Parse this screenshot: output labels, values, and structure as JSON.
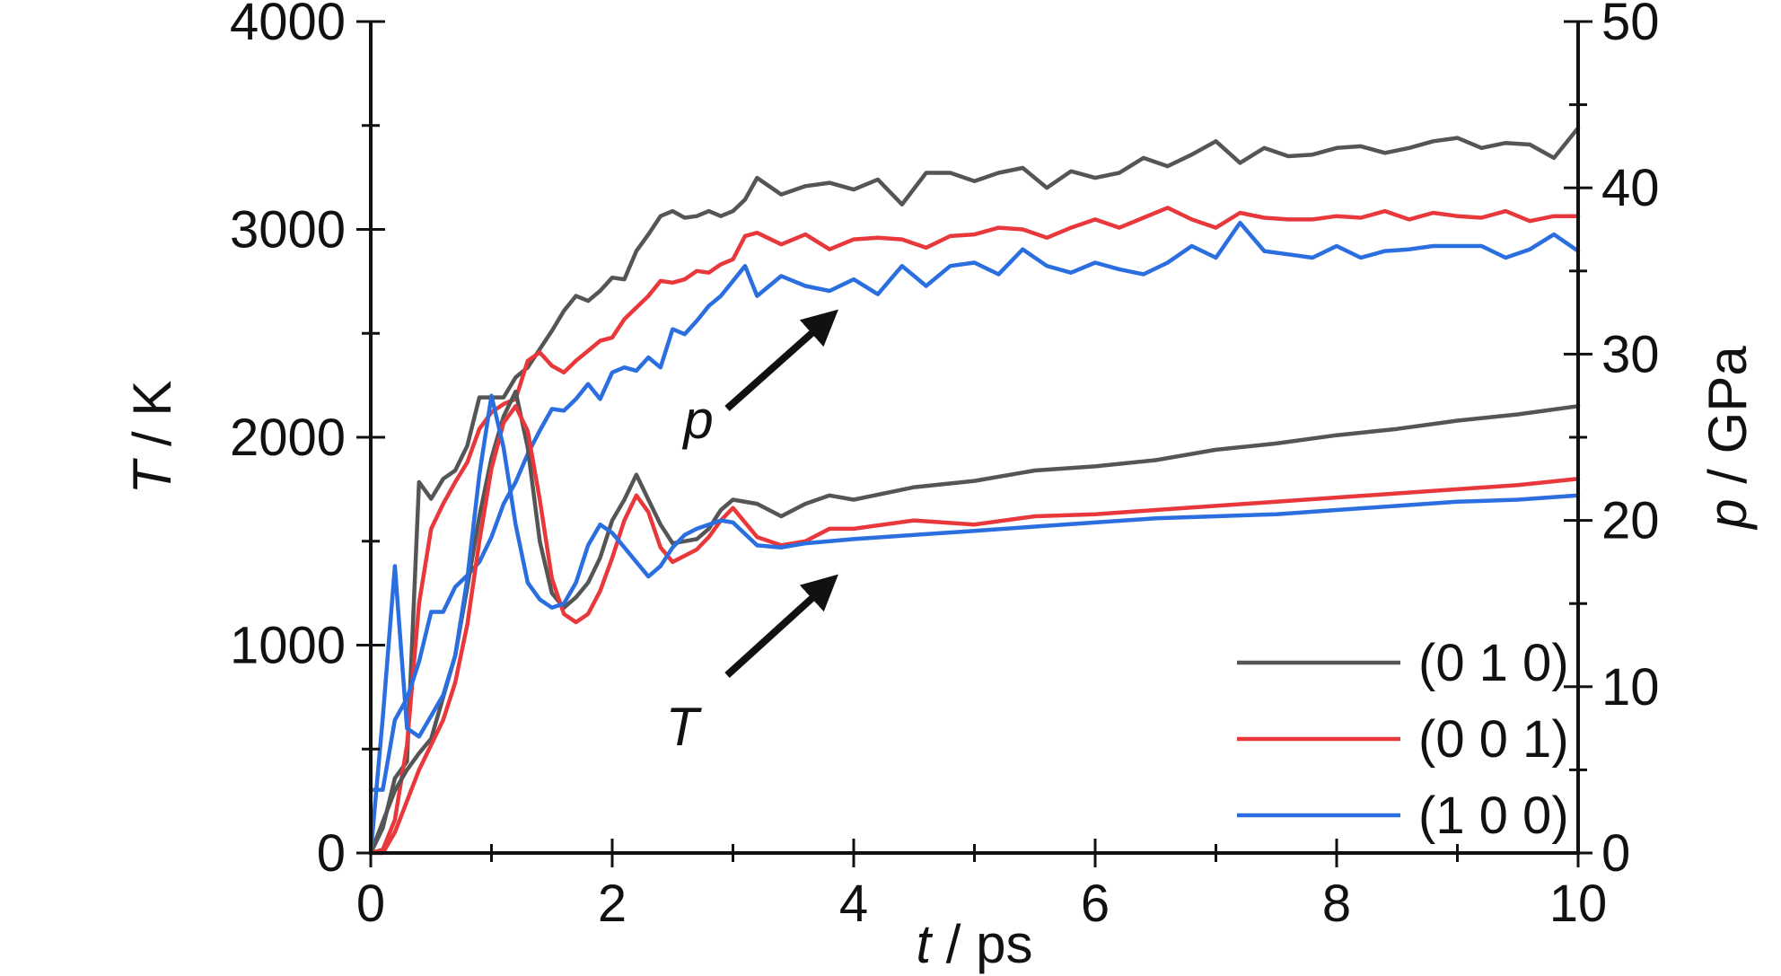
{
  "chart_data": {
    "type": "line",
    "title": "",
    "xlabel": {
      "var": "t",
      "unit": " / ps"
    },
    "ylabel_left": {
      "var": "T",
      "unit": " / K"
    },
    "ylabel_right": {
      "var": "p",
      "unit": " / GPa"
    },
    "xlim": [
      0,
      10
    ],
    "ylim_left": [
      0,
      4000
    ],
    "ylim_right": [
      0,
      50
    ],
    "xticks": [
      0,
      2,
      4,
      6,
      8,
      10
    ],
    "yticks_left": [
      0,
      1000,
      2000,
      3000,
      4000
    ],
    "yticks_right": [
      0,
      10,
      20,
      30,
      40,
      50
    ],
    "grid": false,
    "legend_position": "bottom-right",
    "annotations": [
      {
        "text": "p",
        "points_to": "pressure curves"
      },
      {
        "text": "T",
        "points_to": "temperature curves"
      }
    ],
    "series": [
      {
        "name": "(0 1 0)",
        "color": "#555555",
        "quantity": "p",
        "axis": "right",
        "x": [
          0,
          0.1,
          0.2,
          0.3,
          0.4,
          0.5,
          0.6,
          0.7,
          0.8,
          0.9,
          1.0,
          1.1,
          1.2,
          1.3,
          1.4,
          1.5,
          1.6,
          1.7,
          1.8,
          1.9,
          2.0,
          2.1,
          2.2,
          2.3,
          2.4,
          2.5,
          2.6,
          2.7,
          2.8,
          2.9,
          3.0,
          3.1,
          3.2,
          3.4,
          3.6,
          3.8,
          4.0,
          4.2,
          4.4,
          4.6,
          4.8,
          5.0,
          5.2,
          5.4,
          5.6,
          5.8,
          6.0,
          6.2,
          6.4,
          6.6,
          6.8,
          7.0,
          7.2,
          7.4,
          7.6,
          7.8,
          8.0,
          8.2,
          8.4,
          8.6,
          8.8,
          9.0,
          9.2,
          9.4,
          9.6,
          9.8,
          10.0
        ],
        "y": [
          0,
          1.5,
          4.5,
          5.5,
          22.3,
          21.3,
          22.5,
          23.0,
          24.5,
          27.4,
          27.4,
          27.4,
          28.6,
          29.2,
          30.3,
          31.4,
          32.6,
          33.5,
          33.2,
          33.8,
          34.6,
          34.5,
          36.2,
          37.2,
          38.3,
          38.6,
          38.2,
          38.3,
          38.6,
          38.3,
          38.6,
          39.3,
          40.6,
          39.6,
          40.1,
          40.3,
          39.9,
          40.5,
          39.0,
          40.9,
          40.9,
          40.4,
          40.9,
          41.2,
          40.0,
          41.0,
          40.6,
          40.9,
          41.8,
          41.3,
          42.0,
          42.8,
          41.5,
          42.4,
          41.9,
          42.0,
          42.4,
          42.5,
          42.1,
          42.4,
          42.8,
          43.0,
          42.4,
          42.7,
          42.6,
          41.8,
          43.6
        ]
      },
      {
        "name": "(0 0 1)",
        "color": "#e8383c",
        "quantity": "p",
        "axis": "right",
        "x": [
          0,
          0.1,
          0.2,
          0.3,
          0.4,
          0.5,
          0.6,
          0.7,
          0.8,
          0.9,
          1.0,
          1.1,
          1.2,
          1.3,
          1.4,
          1.5,
          1.6,
          1.7,
          1.8,
          1.9,
          2.0,
          2.1,
          2.2,
          2.3,
          2.4,
          2.5,
          2.6,
          2.7,
          2.8,
          2.9,
          3.0,
          3.1,
          3.2,
          3.4,
          3.6,
          3.8,
          4.0,
          4.2,
          4.4,
          4.6,
          4.8,
          5.0,
          5.2,
          5.4,
          5.6,
          5.8,
          6.0,
          6.2,
          6.4,
          6.6,
          6.8,
          7.0,
          7.2,
          7.4,
          7.6,
          7.8,
          8.0,
          8.2,
          8.4,
          8.6,
          8.8,
          9.0,
          9.2,
          9.4,
          9.6,
          9.8,
          10.0
        ],
        "y": [
          0,
          0.2,
          2.0,
          6.5,
          15.0,
          19.5,
          21.0,
          22.3,
          23.5,
          25.5,
          26.5,
          27.0,
          27.3,
          29.6,
          30.1,
          29.3,
          28.9,
          29.6,
          30.2,
          30.8,
          31.0,
          32.1,
          32.8,
          33.5,
          34.4,
          34.3,
          34.5,
          35.0,
          34.9,
          35.4,
          35.7,
          37.1,
          37.3,
          36.6,
          37.2,
          36.3,
          36.9,
          37.0,
          36.9,
          36.4,
          37.1,
          37.2,
          37.6,
          37.5,
          37.0,
          37.6,
          38.1,
          37.6,
          38.2,
          38.8,
          38.1,
          37.6,
          38.5,
          38.2,
          38.1,
          38.1,
          38.3,
          38.2,
          38.6,
          38.1,
          38.5,
          38.3,
          38.2,
          38.6,
          38.0,
          38.3,
          38.3
        ]
      },
      {
        "name": "(1 0 0)",
        "color": "#2a6ee0",
        "quantity": "p",
        "axis": "right",
        "x": [
          0,
          0.1,
          0.2,
          0.3,
          0.4,
          0.5,
          0.6,
          0.7,
          0.8,
          0.9,
          1.0,
          1.1,
          1.2,
          1.3,
          1.4,
          1.5,
          1.6,
          1.7,
          1.8,
          1.9,
          2.0,
          2.1,
          2.2,
          2.3,
          2.4,
          2.5,
          2.6,
          2.7,
          2.8,
          2.9,
          3.0,
          3.1,
          3.2,
          3.4,
          3.6,
          3.8,
          4.0,
          4.2,
          4.4,
          4.6,
          4.8,
          5.0,
          5.2,
          5.4,
          5.6,
          5.8,
          6.0,
          6.2,
          6.4,
          6.6,
          6.8,
          7.0,
          7.2,
          7.4,
          7.6,
          7.8,
          8.0,
          8.2,
          8.4,
          8.6,
          8.8,
          9.0,
          9.2,
          9.4,
          9.6,
          9.8,
          10.0
        ],
        "y": [
          3.8,
          3.8,
          8.0,
          9.3,
          11.5,
          14.5,
          14.5,
          16.0,
          16.7,
          17.5,
          19.0,
          21.0,
          22.3,
          24.0,
          25.4,
          26.7,
          26.6,
          27.3,
          28.2,
          27.3,
          28.9,
          29.2,
          29.0,
          29.8,
          29.2,
          31.5,
          31.2,
          32.0,
          32.9,
          33.5,
          34.4,
          35.3,
          33.5,
          34.7,
          34.1,
          33.8,
          34.5,
          33.6,
          35.3,
          34.1,
          35.3,
          35.5,
          34.8,
          36.3,
          35.3,
          34.9,
          35.5,
          35.1,
          34.8,
          35.5,
          36.5,
          35.8,
          37.9,
          36.2,
          36.0,
          35.8,
          36.5,
          35.8,
          36.2,
          36.3,
          36.5,
          36.5,
          36.5,
          35.8,
          36.3,
          37.2,
          36.2
        ]
      },
      {
        "name": "(0 1 0)",
        "color": "#555555",
        "quantity": "T",
        "axis": "left",
        "x": [
          0,
          0.1,
          0.2,
          0.3,
          0.4,
          0.5,
          0.6,
          0.7,
          0.8,
          0.9,
          1.0,
          1.1,
          1.2,
          1.3,
          1.4,
          1.5,
          1.6,
          1.7,
          1.8,
          1.9,
          2.0,
          2.1,
          2.2,
          2.3,
          2.4,
          2.5,
          2.6,
          2.7,
          2.8,
          2.9,
          3.0,
          3.2,
          3.4,
          3.6,
          3.8,
          4.0,
          4.5,
          5.0,
          5.5,
          6.0,
          6.5,
          7.0,
          7.5,
          8.0,
          8.5,
          9.0,
          9.5,
          10.0
        ],
        "y": [
          0,
          150,
          300,
          400,
          480,
          550,
          750,
          950,
          1280,
          1620,
          1900,
          2100,
          2220,
          1950,
          1500,
          1250,
          1180,
          1230,
          1300,
          1420,
          1600,
          1700,
          1820,
          1700,
          1580,
          1490,
          1500,
          1510,
          1560,
          1650,
          1700,
          1680,
          1620,
          1680,
          1720,
          1700,
          1760,
          1790,
          1840,
          1860,
          1890,
          1940,
          1970,
          2010,
          2040,
          2080,
          2110,
          2150
        ]
      },
      {
        "name": "(0 0 1)",
        "color": "#e8383c",
        "quantity": "T",
        "axis": "left",
        "x": [
          0,
          0.1,
          0.2,
          0.3,
          0.4,
          0.5,
          0.6,
          0.7,
          0.8,
          0.9,
          1.0,
          1.1,
          1.2,
          1.3,
          1.4,
          1.5,
          1.6,
          1.7,
          1.8,
          1.9,
          2.0,
          2.1,
          2.2,
          2.3,
          2.4,
          2.5,
          2.6,
          2.7,
          2.8,
          2.9,
          3.0,
          3.2,
          3.4,
          3.6,
          3.8,
          4.0,
          4.5,
          5.0,
          5.5,
          6.0,
          6.5,
          7.0,
          7.5,
          8.0,
          8.5,
          9.0,
          9.5,
          10.0
        ],
        "y": [
          0,
          0,
          100,
          250,
          400,
          520,
          640,
          820,
          1100,
          1500,
          1850,
          2070,
          2150,
          2030,
          1700,
          1320,
          1150,
          1110,
          1150,
          1260,
          1420,
          1600,
          1720,
          1640,
          1470,
          1400,
          1430,
          1460,
          1520,
          1600,
          1660,
          1520,
          1480,
          1500,
          1560,
          1560,
          1600,
          1580,
          1620,
          1630,
          1650,
          1670,
          1690,
          1710,
          1730,
          1750,
          1770,
          1800
        ]
      },
      {
        "name": "(1 0 0)",
        "color": "#2a6ee0",
        "quantity": "T",
        "axis": "left",
        "x": [
          0,
          0.1,
          0.2,
          0.3,
          0.4,
          0.5,
          0.6,
          0.7,
          0.8,
          0.9,
          1.0,
          1.1,
          1.2,
          1.3,
          1.4,
          1.5,
          1.6,
          1.7,
          1.8,
          1.9,
          2.0,
          2.1,
          2.2,
          2.3,
          2.4,
          2.5,
          2.6,
          2.7,
          2.8,
          2.9,
          3.0,
          3.2,
          3.4,
          3.6,
          3.8,
          4.0,
          4.5,
          5.0,
          5.5,
          6.0,
          6.5,
          7.0,
          7.5,
          8.0,
          8.5,
          9.0,
          9.5,
          10.0
        ],
        "y": [
          0,
          650,
          1380,
          600,
          560,
          660,
          760,
          950,
          1320,
          1820,
          2200,
          1950,
          1580,
          1300,
          1220,
          1180,
          1200,
          1300,
          1480,
          1580,
          1540,
          1470,
          1400,
          1330,
          1380,
          1470,
          1530,
          1560,
          1580,
          1600,
          1590,
          1480,
          1470,
          1490,
          1500,
          1510,
          1530,
          1550,
          1570,
          1590,
          1610,
          1620,
          1630,
          1650,
          1670,
          1690,
          1700,
          1720
        ]
      }
    ]
  }
}
